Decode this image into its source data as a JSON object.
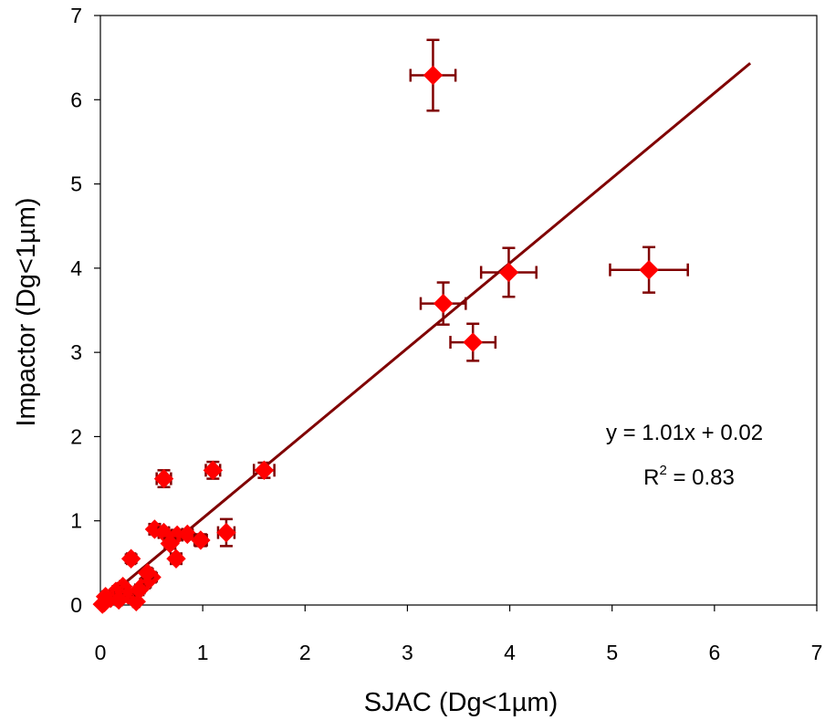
{
  "chart_data": {
    "type": "scatter",
    "xlabel": "SJAC (Dg<1µm)",
    "ylabel": "Impactor (Dg<1µm)",
    "xlim": [
      0,
      7
    ],
    "ylim": [
      0,
      7
    ],
    "x_ticks": [
      "0",
      "1",
      "2",
      "3",
      "4",
      "5",
      "6",
      "7"
    ],
    "y_ticks": [
      "0",
      "1",
      "2",
      "3",
      "4",
      "5",
      "6",
      "7"
    ],
    "grid": false,
    "legend": "none",
    "marker": "diamond",
    "marker_color": "#ff0000",
    "errorbar_color": "#800000",
    "trendline_color": "#800000",
    "points": [
      {
        "x": 3.25,
        "y": 6.29,
        "xerr": 0.22,
        "yerr": 0.42
      },
      {
        "x": 3.99,
        "y": 3.95,
        "xerr": 0.27,
        "yerr": 0.29
      },
      {
        "x": 5.36,
        "y": 3.98,
        "xerr": 0.38,
        "yerr": 0.27
      },
      {
        "x": 3.35,
        "y": 3.58,
        "xerr": 0.22,
        "yerr": 0.25
      },
      {
        "x": 3.64,
        "y": 3.12,
        "xerr": 0.22,
        "yerr": 0.22
      },
      {
        "x": 1.6,
        "y": 1.6,
        "xerr": 0.1,
        "yerr": 0.09
      },
      {
        "x": 1.1,
        "y": 1.6,
        "xerr": 0.07,
        "yerr": 0.1
      },
      {
        "x": 0.62,
        "y": 1.5,
        "xerr": 0.07,
        "yerr": 0.1
      },
      {
        "x": 1.23,
        "y": 0.86,
        "xerr": 0.08,
        "yerr": 0.16
      },
      {
        "x": 0.53,
        "y": 0.9,
        "xerr": 0.05,
        "yerr": 0.06
      },
      {
        "x": 0.62,
        "y": 0.86,
        "xerr": 0.05,
        "yerr": 0.05
      },
      {
        "x": 0.75,
        "y": 0.83,
        "xerr": 0.05,
        "yerr": 0.06
      },
      {
        "x": 0.85,
        "y": 0.84,
        "xerr": 0.05,
        "yerr": 0.05
      },
      {
        "x": 0.98,
        "y": 0.77,
        "xerr": 0.06,
        "yerr": 0.07
      },
      {
        "x": 0.68,
        "y": 0.73,
        "xerr": 0.05,
        "yerr": 0.06
      },
      {
        "x": 0.74,
        "y": 0.55,
        "xerr": 0.05,
        "yerr": 0.06
      },
      {
        "x": 0.3,
        "y": 0.55,
        "xerr": 0.04,
        "yerr": 0.05
      },
      {
        "x": 0.5,
        "y": 0.33,
        "xerr": 0.04,
        "yerr": 0.05
      },
      {
        "x": 0.44,
        "y": 0.26,
        "xerr": 0.04,
        "yerr": 0.05
      },
      {
        "x": 0.22,
        "y": 0.22,
        "xerr": 0.03,
        "yerr": 0.04
      },
      {
        "x": 0.15,
        "y": 0.16,
        "xerr": 0.03,
        "yerr": 0.03
      },
      {
        "x": 0.27,
        "y": 0.12,
        "xerr": 0.03,
        "yerr": 0.03
      },
      {
        "x": 0.35,
        "y": 0.04,
        "xerr": 0.03,
        "yerr": 0.03
      },
      {
        "x": 0.1,
        "y": 0.08,
        "xerr": 0.03,
        "yerr": 0.03
      },
      {
        "x": 0.05,
        "y": 0.1,
        "xerr": 0.03,
        "yerr": 0.03
      },
      {
        "x": 0.04,
        "y": 0.03,
        "xerr": 0.02,
        "yerr": 0.03
      },
      {
        "x": 0.02,
        "y": 0.01,
        "xerr": 0.02,
        "yerr": 0.02
      },
      {
        "x": 0.18,
        "y": 0.06,
        "xerr": 0.03,
        "yerr": 0.03
      },
      {
        "x": 0.38,
        "y": 0.18,
        "xerr": 0.04,
        "yerr": 0.04
      },
      {
        "x": 0.46,
        "y": 0.38,
        "xerr": 0.04,
        "yerr": 0.05
      }
    ],
    "trendline": {
      "slope": 1.01,
      "intercept": 0.02,
      "x_start": 0.0,
      "x_end": 6.35
    },
    "annotations": {
      "equation": "y = 1.01x + 0.02",
      "r2_base": "R",
      "r2_sup": "2",
      "r2_rest": " = 0.83"
    }
  }
}
